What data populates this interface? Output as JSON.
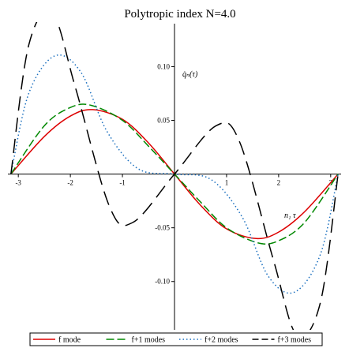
{
  "chart_data": {
    "type": "line",
    "title": "Polytropic index N=4.0",
    "xlabel": "n₁ τ",
    "ylabel": "q̇ₙ(τ)",
    "xlim": [
      -3.2,
      3.2
    ],
    "ylim": [
      -0.145,
      0.14
    ],
    "grid": false,
    "legend_position": "bottom",
    "x_ticks": [
      {
        "value": -3,
        "label": "-3"
      },
      {
        "value": -2,
        "label": "-2"
      },
      {
        "value": -1,
        "label": "-1"
      },
      {
        "value": 1,
        "label": "1"
      },
      {
        "value": 2,
        "label": "2"
      },
      {
        "value": 3,
        "label": "3"
      }
    ],
    "y_ticks": [
      {
        "value": 0.1,
        "label": "0.10"
      },
      {
        "value": 0.05,
        "label": "0.05"
      },
      {
        "value": -0.05,
        "label": "-0.05"
      },
      {
        "value": -0.1,
        "label": "-0.10"
      }
    ],
    "series": [
      {
        "name": "f mode",
        "color": "#dd0000",
        "dash": "solid",
        "x": [
          -3.142,
          -2.5,
          -2,
          -1.571,
          -1,
          -0.5,
          0,
          0.5,
          1,
          1.571,
          2,
          2.5,
          3.142
        ],
        "y": [
          0,
          0.035,
          0.054,
          0.06,
          0.051,
          0.029,
          0,
          -0.029,
          -0.051,
          -0.06,
          -0.054,
          -0.035,
          0
        ]
      },
      {
        "name": "f+1 modes",
        "color": "#008800",
        "dash": "dashed",
        "x": [
          -3.142,
          -2.5,
          -2,
          -1.6,
          -1,
          -0.5,
          0,
          0.5,
          1,
          1.6,
          2,
          2.5,
          3.142
        ],
        "y": [
          0,
          0.045,
          0.062,
          0.064,
          0.05,
          0.026,
          0,
          -0.026,
          -0.05,
          -0.064,
          -0.062,
          -0.045,
          0
        ]
      },
      {
        "name": "f+2 modes",
        "color": "#1a6fbf",
        "dash": "dotted",
        "x": [
          -3.142,
          -2.8,
          -2.3,
          -1.8,
          -1.3,
          -0.7,
          0,
          0.7,
          1.3,
          1.8,
          2.3,
          2.8,
          3.142
        ],
        "y": [
          0,
          0.075,
          0.11,
          0.095,
          0.04,
          0.005,
          0,
          -0.005,
          -0.04,
          -0.095,
          -0.11,
          -0.075,
          0
        ]
      },
      {
        "name": "f+3 modes",
        "color": "#000000",
        "dash": "long-dash",
        "x": [
          -3.142,
          -2.8,
          -2.35,
          -1.9,
          -1.25,
          -0.8,
          0,
          0.8,
          1.25,
          1.9,
          2.35,
          2.8,
          3.142
        ],
        "y": [
          0,
          0.12,
          0.15,
          0.08,
          -0.03,
          -0.045,
          0,
          0.045,
          0.03,
          -0.08,
          -0.15,
          -0.12,
          0
        ]
      }
    ]
  }
}
